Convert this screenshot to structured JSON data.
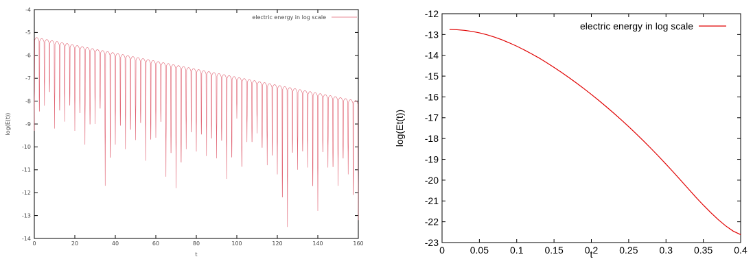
{
  "chart_data": [
    {
      "type": "line",
      "title": "",
      "xlabel": "t",
      "ylabel": "log(E(t))",
      "xlim": [
        0,
        160
      ],
      "ylim": [
        -14,
        -4
      ],
      "xticks": [
        0,
        20,
        40,
        60,
        80,
        100,
        120,
        140,
        160
      ],
      "yticks": [
        -4,
        -5,
        -6,
        -7,
        -8,
        -9,
        -10,
        -11,
        -12,
        -13,
        -14
      ],
      "grid": false,
      "legend_position": "top-right",
      "series": [
        {
          "name": "electric energy in log scale",
          "color": "#e06070",
          "style": "damped oscillation: peaks decay linearly from about -5.2 at t=0 to about -8.0 at t=160, with deep troughs",
          "peak_envelope": {
            "x": [
              0,
              40,
              80,
              120,
              160
            ],
            "y": [
              -5.2,
              -5.9,
              -6.6,
              -7.3,
              -8.0
            ]
          },
          "oscillation_period": 2.5,
          "trough_depths": [
            [
              1.5,
              -9.3
            ],
            [
              6.5,
              -8.2
            ],
            [
              11.6,
              -9.2
            ],
            [
              16.6,
              -8.9
            ],
            [
              21.7,
              -9.3
            ],
            [
              26.7,
              -9.9
            ],
            [
              31.8,
              -9.0
            ],
            [
              36.8,
              -11.7
            ],
            [
              41.9,
              -9.9
            ],
            [
              46.9,
              -10.1
            ],
            [
              52.0,
              -9.7
            ],
            [
              57.0,
              -10.6
            ],
            [
              62.1,
              -9.6
            ],
            [
              67.1,
              -11.3
            ],
            [
              72.2,
              -11.8
            ],
            [
              77.2,
              -10.1
            ],
            [
              82.3,
              -10.2
            ],
            [
              87.3,
              -10.4
            ],
            [
              92.4,
              -10.5
            ],
            [
              97.4,
              -11.4
            ],
            [
              102.5,
              -11.9
            ],
            [
              107.5,
              -10.5
            ],
            [
              112.6,
              -10.8
            ],
            [
              117.6,
              -11.2
            ],
            [
              122.7,
              -13.5
            ],
            [
              127.7,
              -11.0
            ],
            [
              132.8,
              -10.9
            ],
            [
              137.8,
              -12.8
            ],
            [
              142.9,
              -10.9
            ],
            [
              147.9,
              -11.7
            ],
            [
              153.0,
              -11.2
            ],
            [
              158.0,
              -13.2
            ]
          ]
        }
      ]
    },
    {
      "type": "line",
      "title": "",
      "xlabel": "t",
      "ylabel": "log(Et(t))",
      "xlim": [
        0,
        0.4
      ],
      "ylim": [
        -23,
        -12
      ],
      "xticks": [
        0,
        0.05,
        0.1,
        0.15,
        0.2,
        0.25,
        0.3,
        0.35,
        0.4
      ],
      "yticks": [
        -12,
        -13,
        -14,
        -15,
        -16,
        -17,
        -18,
        -19,
        -20,
        -21,
        -22,
        -23
      ],
      "grid": false,
      "legend_position": "top-right",
      "series": [
        {
          "name": "electric energy in log scale",
          "color": "#e00000",
          "x": [
            0.01,
            0.02,
            0.03,
            0.04,
            0.05,
            0.06,
            0.07,
            0.08,
            0.09,
            0.1,
            0.11,
            0.12,
            0.13,
            0.14,
            0.15,
            0.16,
            0.17,
            0.18,
            0.19,
            0.2,
            0.21,
            0.22,
            0.23,
            0.24,
            0.25,
            0.26,
            0.27,
            0.28,
            0.29,
            0.3,
            0.31,
            0.32,
            0.33,
            0.34,
            0.35,
            0.36,
            0.37,
            0.38,
            0.39,
            0.4
          ],
          "y": [
            -12.75,
            -12.77,
            -12.8,
            -12.85,
            -12.92,
            -13.01,
            -13.12,
            -13.25,
            -13.4,
            -13.56,
            -13.74,
            -13.93,
            -14.13,
            -14.35,
            -14.58,
            -14.82,
            -15.07,
            -15.33,
            -15.6,
            -15.88,
            -16.17,
            -16.47,
            -16.78,
            -17.1,
            -17.43,
            -17.77,
            -18.12,
            -18.48,
            -18.85,
            -19.23,
            -19.62,
            -20.02,
            -20.42,
            -20.82,
            -21.2,
            -21.56,
            -21.9,
            -22.2,
            -22.45,
            -22.62
          ]
        }
      ]
    }
  ]
}
